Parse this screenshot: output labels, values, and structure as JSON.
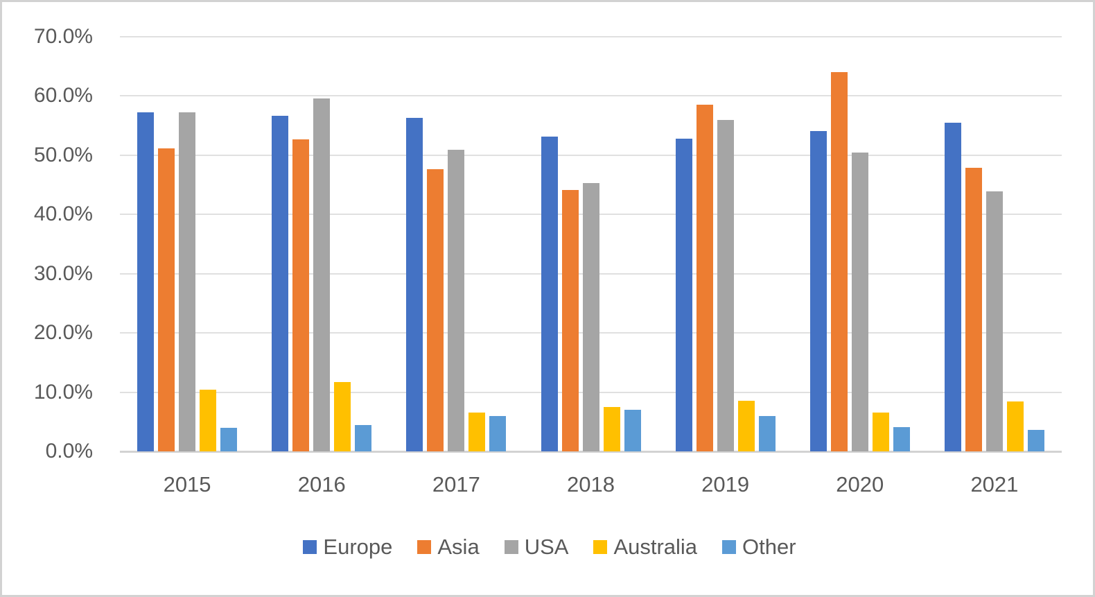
{
  "chart_data": {
    "type": "bar",
    "title": "",
    "xlabel": "",
    "ylabel": "",
    "categories": [
      "2015",
      "2016",
      "2017",
      "2018",
      "2019",
      "2020",
      "2021"
    ],
    "series": [
      {
        "name": "Europe",
        "color": "#4472C4",
        "values": [
          57.3,
          56.7,
          56.3,
          53.2,
          52.8,
          54.1,
          55.5
        ]
      },
      {
        "name": "Asia",
        "color": "#ED7D31",
        "values": [
          51.1,
          52.7,
          47.7,
          44.1,
          58.5,
          64.0,
          47.9
        ]
      },
      {
        "name": "USA",
        "color": "#A5A5A5",
        "values": [
          57.2,
          59.6,
          50.9,
          45.3,
          55.9,
          50.4,
          43.9
        ]
      },
      {
        "name": "Australia",
        "color": "#FFC000",
        "values": [
          10.4,
          11.7,
          6.6,
          7.5,
          8.5,
          6.5,
          8.4
        ]
      },
      {
        "name": "Other",
        "color": "#5B9BD5",
        "values": [
          4.0,
          4.5,
          6.0,
          7.0,
          6.0,
          4.1,
          3.6
        ]
      }
    ],
    "ylim": [
      0,
      70
    ],
    "ytick_step": 10,
    "ytick_labels": [
      "0.0%",
      "10.0%",
      "20.0%",
      "30.0%",
      "40.0%",
      "50.0%",
      "60.0%",
      "70.0%"
    ],
    "grid": true,
    "legend_position": "bottom",
    "colors": {
      "text": "#595959",
      "gridline": "#e0e0e0",
      "axis_line": "#d2d2d2",
      "background": "#ffffff",
      "frame_border": "#d2d2d2"
    }
  }
}
